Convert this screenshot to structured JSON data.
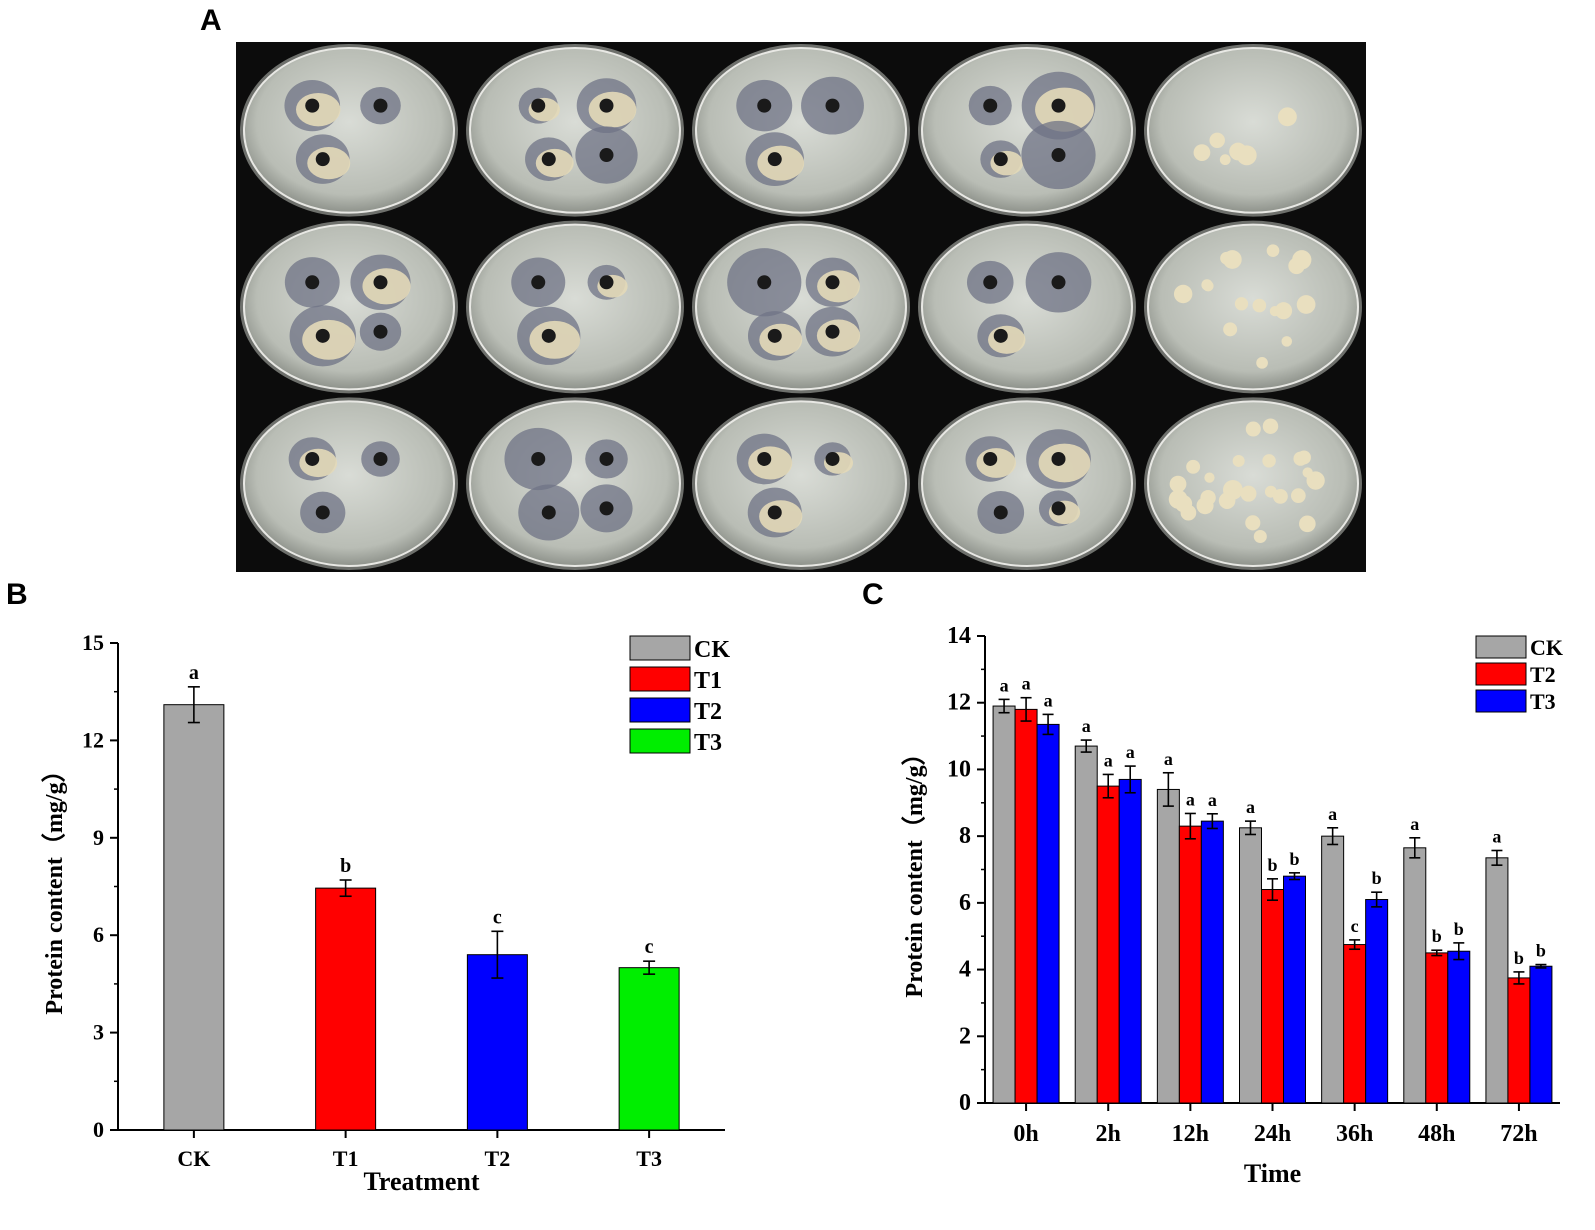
{
  "panels": {
    "a": "A",
    "b": "B",
    "c": "C"
  },
  "colors": {
    "CK": "#a6a6a6",
    "T1": "#ff0000",
    "T2": "#0000ff",
    "T3": "#00ee00",
    "axis": "#000000"
  },
  "photo_grid": {
    "rows": 3,
    "cols": 5
  },
  "chart_data": [
    {
      "type": "bar",
      "title": "",
      "xlabel": "Treatment",
      "ylabel": "Protein content（mg/g）",
      "categories": [
        "CK",
        "T1",
        "T2",
        "T3"
      ],
      "series": [
        {
          "name": "CK",
          "values": [
            13.1,
            7.45,
            5.4,
            5.0
          ],
          "errors": [
            0.55,
            0.25,
            0.72,
            0.2
          ],
          "labels": [
            "a",
            "b",
            "c",
            "c"
          ]
        }
      ],
      "bar_colors": [
        "#a6a6a6",
        "#ff0000",
        "#0000ff",
        "#00ee00"
      ],
      "ylim": [
        0,
        15
      ],
      "yticks": [
        0,
        3,
        6,
        9,
        12,
        15
      ],
      "legend": {
        "placement": "top-right",
        "entries": [
          "CK",
          "T1",
          "T2",
          "T3"
        ]
      },
      "grid": false
    },
    {
      "type": "bar",
      "title": "",
      "xlabel": "Time",
      "ylabel": "Protein content（mg/g）",
      "categories": [
        "0h",
        "2h",
        "12h",
        "24h",
        "36h",
        "48h",
        "72h"
      ],
      "series": [
        {
          "name": "CK",
          "values": [
            11.9,
            10.7,
            9.4,
            8.25,
            8.0,
            7.65,
            7.35
          ],
          "errors": [
            0.2,
            0.18,
            0.5,
            0.2,
            0.25,
            0.3,
            0.22
          ],
          "labels": [
            "a",
            "a",
            "a",
            "a",
            "a",
            "a",
            "a"
          ]
        },
        {
          "name": "T2",
          "values": [
            11.8,
            9.5,
            8.3,
            6.4,
            4.75,
            4.5,
            3.75
          ],
          "errors": [
            0.35,
            0.35,
            0.38,
            0.32,
            0.14,
            0.08,
            0.18
          ],
          "labels": [
            "a",
            "a",
            "a",
            "b",
            "c",
            "b",
            "b"
          ]
        },
        {
          "name": "T3",
          "values": [
            11.35,
            9.7,
            8.45,
            6.8,
            6.1,
            4.55,
            4.1
          ],
          "errors": [
            0.3,
            0.4,
            0.22,
            0.1,
            0.22,
            0.25,
            0.05
          ],
          "labels": [
            "a",
            "a",
            "a",
            "b",
            "b",
            "b",
            "b"
          ]
        }
      ],
      "series_colors": [
        "#a6a6a6",
        "#ff0000",
        "#0000ff"
      ],
      "ylim": [
        0,
        14
      ],
      "yticks": [
        0,
        2,
        4,
        6,
        8,
        10,
        12,
        14
      ],
      "legend": {
        "placement": "top-right",
        "entries": [
          "CK",
          "T2",
          "T3"
        ]
      },
      "grid": false
    }
  ]
}
